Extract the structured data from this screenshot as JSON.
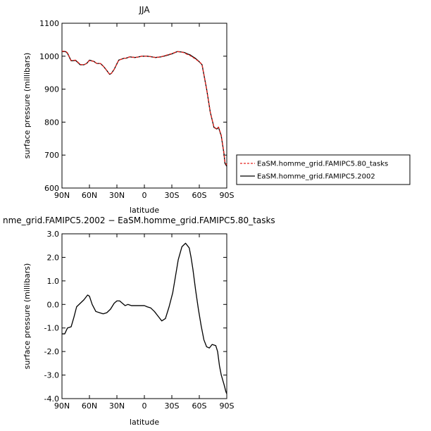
{
  "chart_data": [
    {
      "type": "line",
      "title": "JJA",
      "xlabel": "latitude",
      "ylabel": "surface pressure (millibars)",
      "xlim": [
        90,
        -90
      ],
      "ylim": [
        600,
        1100
      ],
      "x_ticks": [
        {
          "value": 90,
          "label": "90N"
        },
        {
          "value": 60,
          "label": "60N"
        },
        {
          "value": 30,
          "label": "30N"
        },
        {
          "value": 0,
          "label": "0"
        },
        {
          "value": -30,
          "label": "30S"
        },
        {
          "value": -60,
          "label": "60S"
        },
        {
          "value": -90,
          "label": "90S"
        }
      ],
      "y_ticks": [
        {
          "value": 600,
          "label": "600"
        },
        {
          "value": 700,
          "label": "700"
        },
        {
          "value": 800,
          "label": "800"
        },
        {
          "value": 900,
          "label": "900"
        },
        {
          "value": 1000,
          "label": "1000"
        },
        {
          "value": 1100,
          "label": "1100"
        }
      ],
      "legend_position": "right",
      "series": [
        {
          "name": "EaSM.homme_grid.FAMIPC5.80_tasks",
          "color": "#e8231e",
          "dashed": true,
          "x": [
            90,
            86,
            84,
            80,
            75,
            70,
            66,
            63,
            60,
            55,
            52,
            50,
            48,
            45,
            42,
            38,
            36,
            33,
            30,
            28,
            22,
            20,
            16,
            10,
            6,
            3,
            0,
            -3,
            -6,
            -12,
            -18,
            -24,
            -30,
            -36,
            -40,
            -44,
            -47,
            -50,
            -52,
            -55,
            -58,
            -60,
            -63,
            -68,
            -72,
            -76,
            -79,
            -81,
            -84,
            -87,
            -88,
            -90
          ],
          "y": [
            1015,
            1015,
            1010,
            987,
            988,
            975,
            974,
            978,
            987,
            984,
            978,
            978,
            978,
            970,
            960,
            945,
            948,
            960,
            977,
            988,
            994,
            994,
            998,
            996,
            998,
            1000,
            1000,
            1000,
            999,
            996,
            998,
            1003,
            1008,
            1014,
            1013,
            1010,
            1005,
            1002,
            998,
            993,
            987,
            983,
            975,
            900,
            830,
            785,
            780,
            785,
            760,
            705,
            678,
            670
          ]
        },
        {
          "name": "EaSM.homme_grid.FAMIPC5.2002",
          "color": "#000000",
          "dashed": false,
          "x": [
            90,
            86,
            84,
            80,
            75,
            70,
            66,
            63,
            60,
            55,
            52,
            50,
            48,
            45,
            42,
            38,
            36,
            33,
            30,
            28,
            22,
            20,
            16,
            10,
            6,
            3,
            0,
            -3,
            -6,
            -12,
            -18,
            -24,
            -30,
            -36,
            -40,
            -44,
            -47,
            -50,
            -52,
            -55,
            -58,
            -60,
            -63,
            -68,
            -72,
            -76,
            -79,
            -81,
            -84,
            -87,
            -88,
            -90
          ],
          "y": [
            1014,
            1014,
            1009,
            986,
            987,
            974,
            974,
            978,
            988,
            984,
            978,
            978,
            978,
            970,
            960,
            945,
            948,
            960,
            977,
            988,
            994,
            994,
            998,
            996,
            998,
            1000,
            1000,
            1000,
            999,
            996,
            998,
            1002,
            1007,
            1014,
            1013,
            1011,
            1007,
            1004,
            1000,
            995,
            988,
            983,
            974,
            900,
            830,
            784,
            779,
            784,
            758,
            703,
            675,
            666
          ]
        }
      ]
    },
    {
      "type": "line",
      "title": "nme_grid.FAMIPC5.2002 − EaSM.homme_grid.FAMIPC5.80_tasks",
      "xlabel": "latitude",
      "ylabel": "surface pressure (millibars)",
      "xlim": [
        90,
        -90
      ],
      "ylim": [
        -4.0,
        3.0
      ],
      "x_ticks": [
        {
          "value": 90,
          "label": "90N"
        },
        {
          "value": 60,
          "label": "60N"
        },
        {
          "value": 30,
          "label": "30N"
        },
        {
          "value": 0,
          "label": "0"
        },
        {
          "value": -30,
          "label": "30S"
        },
        {
          "value": -60,
          "label": "60S"
        },
        {
          "value": -90,
          "label": "90S"
        }
      ],
      "y_ticks": [
        {
          "value": 3.0,
          "label": "3.0"
        },
        {
          "value": 2.0,
          "label": "2.0"
        },
        {
          "value": 1.0,
          "label": "1.0"
        },
        {
          "value": 0.0,
          "label": "0.0"
        },
        {
          "value": -1.0,
          "label": "-1.0"
        },
        {
          "value": -2.0,
          "label": "-2.0"
        },
        {
          "value": -3.0,
          "label": "-3.0"
        },
        {
          "value": -4.0,
          "label": "-4.0"
        }
      ],
      "series": [
        {
          "color": "#000000",
          "dashed": false,
          "x": [
            90,
            87,
            84,
            80,
            77,
            74,
            70,
            66,
            62,
            60,
            57,
            53,
            49,
            45,
            41,
            37,
            33,
            30,
            27,
            24,
            21,
            18,
            14,
            10,
            6,
            2,
            0,
            -3,
            -7,
            -11,
            -15,
            -19,
            -23,
            -27,
            -31,
            -34,
            -37,
            -41,
            -45,
            -49,
            -51,
            -53,
            -56,
            -59,
            -62,
            -65,
            -68,
            -71,
            -74,
            -78,
            -80,
            -82,
            -84,
            -87,
            -89,
            -90
          ],
          "y": [
            -1.25,
            -1.25,
            -1.0,
            -0.95,
            -0.55,
            -0.1,
            0.05,
            0.2,
            0.4,
            0.35,
            0.0,
            -0.3,
            -0.35,
            -0.4,
            -0.35,
            -0.2,
            0.05,
            0.15,
            0.15,
            0.05,
            -0.05,
            0.0,
            -0.05,
            -0.05,
            -0.05,
            -0.05,
            -0.05,
            -0.1,
            -0.15,
            -0.3,
            -0.5,
            -0.7,
            -0.6,
            -0.1,
            0.5,
            1.2,
            1.9,
            2.45,
            2.6,
            2.4,
            2.0,
            1.5,
            0.6,
            -0.2,
            -0.9,
            -1.5,
            -1.8,
            -1.85,
            -1.7,
            -1.75,
            -2.0,
            -2.6,
            -3.0,
            -3.4,
            -3.7,
            -3.8
          ]
        }
      ]
    }
  ]
}
